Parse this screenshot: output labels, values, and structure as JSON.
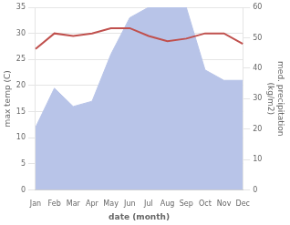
{
  "chart_data": {
    "type": "line",
    "categories": [
      "Jan",
      "Feb",
      "Mar",
      "Apr",
      "May",
      "Jun",
      "Jul",
      "Aug",
      "Sep",
      "Oct",
      "Nov",
      "Dec"
    ],
    "series": [
      {
        "type": "area",
        "color": "#b8c4e8",
        "values": [
          12,
          19.5,
          16,
          17,
          26,
          33,
          35,
          35,
          35,
          23,
          21,
          21
        ]
      },
      {
        "type": "line",
        "color": "#c0504d",
        "values": [
          27,
          30,
          29.5,
          30,
          31,
          31,
          29.5,
          28.5,
          29,
          30,
          30,
          28
        ]
      }
    ],
    "xlabel": "date (month)",
    "ylabel": "max temp (C)",
    "y2label": "med. precipitation\n(kg/m2)",
    "ylim": [
      0,
      35
    ],
    "yticks": [
      0,
      5,
      10,
      15,
      20,
      25,
      30,
      35
    ],
    "y2lim": [
      0,
      60
    ],
    "y2ticks": [
      0,
      10,
      20,
      30,
      40,
      50,
      60
    ],
    "grid": true
  }
}
